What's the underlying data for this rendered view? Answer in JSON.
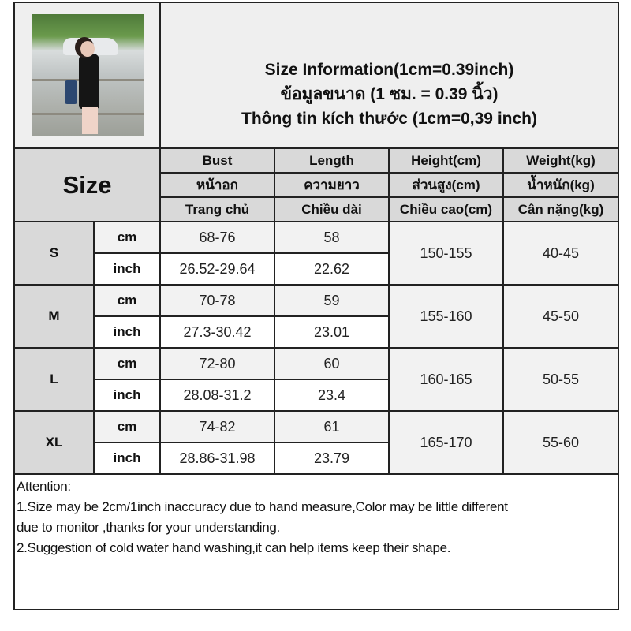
{
  "title": {
    "lines": [
      "Size Information(1cm=0.39inch)",
      "ข้อมูลขนาด (1 ซม. = 0.39 นิ้ว)",
      "Thông tin kích thước (1cm=0,39 inch)"
    ]
  },
  "product_photo": {
    "alt": "model wearing black tank top and black shorts"
  },
  "header": {
    "size_label": "Size",
    "columns": [
      {
        "en": "Bust",
        "th": "หน้าอก",
        "vi": "Trang chủ"
      },
      {
        "en": "Length",
        "th": "ความยาว",
        "vi": "Chiều dài"
      },
      {
        "en": "Height(cm)",
        "th": "ส่วนสูง(cm)",
        "vi": "Chiều cao(cm)"
      },
      {
        "en": "Weight(kg)",
        "th": "น้ำหนัก(kg)",
        "vi": "Cân nặng(kg)"
      }
    ]
  },
  "units": {
    "cm": "cm",
    "inch": "inch"
  },
  "sizes": [
    {
      "size": "S",
      "bust_cm": "68-76",
      "length_cm": "58",
      "bust_inch": "26.52-29.64",
      "length_inch": "22.62",
      "height": "150-155",
      "weight": "40-45"
    },
    {
      "size": "M",
      "bust_cm": "70-78",
      "length_cm": "59",
      "bust_inch": "27.3-30.42",
      "length_inch": "23.01",
      "height": "155-160",
      "weight": "45-50"
    },
    {
      "size": "L",
      "bust_cm": "72-80",
      "length_cm": "60",
      "bust_inch": "28.08-31.2",
      "length_inch": "23.4",
      "height": "160-165",
      "weight": "50-55"
    },
    {
      "size": "XL",
      "bust_cm": "74-82",
      "length_cm": "61",
      "bust_inch": "28.86-31.98",
      "length_inch": "23.79",
      "height": "165-170",
      "weight": "55-60"
    }
  ],
  "notes": {
    "heading": "Attention:",
    "lines": [
      "1.Size may be 2cm/1inch inaccuracy due to hand measure,Color may be little different",
      "due to monitor ,thanks for your understanding.",
      "2.Suggestion of cold water hand washing,it can help items keep their shape."
    ]
  },
  "colors": {
    "header_bg": "#d9d9d9",
    "light_bg": "#f2f2f2",
    "border": "#222222"
  }
}
